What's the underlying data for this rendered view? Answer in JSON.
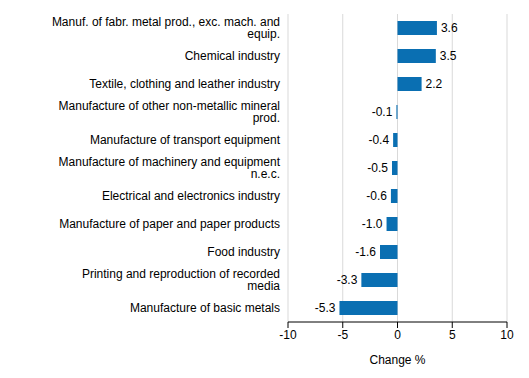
{
  "chart_data": {
    "type": "bar",
    "orientation": "horizontal",
    "categories": [
      "Manuf. of fabr. metal prod., exc. mach. and equip.",
      "Chemical industry",
      "Textile, clothing and leather industry",
      "Manufacture of other non-metallic mineral prod.",
      "Manufacture of transport equipment",
      "Manufacture of machinery and equipment n.e.c.",
      "Electrical and electronics industry",
      "Manufacture of paper and paper products",
      "Food industry",
      "Printing and reproduction of recorded media",
      "Manufacture of basic metals"
    ],
    "values": [
      3.6,
      3.5,
      2.2,
      -0.1,
      -0.4,
      -0.5,
      -0.6,
      -1.0,
      -1.6,
      -3.3,
      -5.3
    ],
    "value_labels": [
      "3.6",
      "3.5",
      "2.2",
      "-0.1",
      "-0.4",
      "-0.5",
      "-0.6",
      "-1.0",
      "-1.6",
      "-3.3",
      "-5.3"
    ],
    "data_labels": true,
    "color": "#0a6fb2",
    "xlabel": "Change %",
    "xlim": [
      -10,
      10
    ],
    "xticks": [
      -10,
      -5,
      0,
      5,
      10
    ],
    "grid": true
  }
}
